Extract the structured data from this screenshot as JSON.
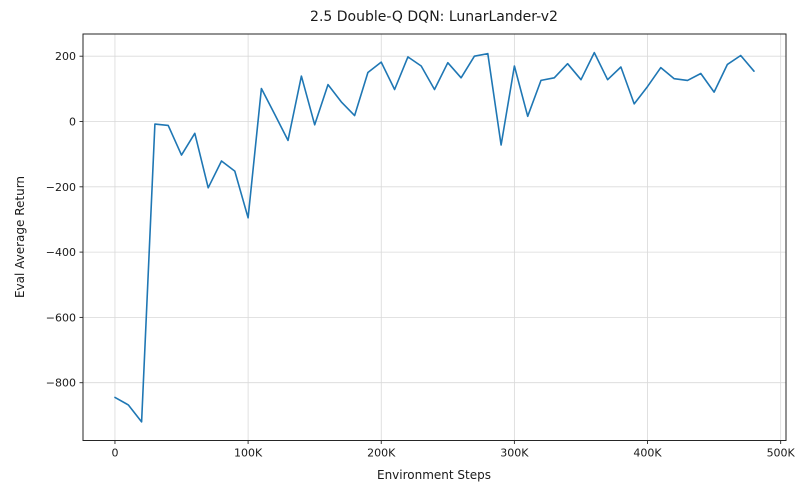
{
  "chart_data": {
    "type": "line",
    "title": "2.5 Double-Q DQN: LunarLander-v2",
    "xlabel": "Environment Steps",
    "ylabel": "Eval Average Return",
    "grid": true,
    "legend": "none",
    "line_color": "#1f77b4",
    "grid_color": "#d9d9d9",
    "spine_color": "#262626",
    "x": [
      0,
      10000,
      20000,
      30000,
      40000,
      50000,
      60000,
      70000,
      80000,
      90000,
      100000,
      110000,
      120000,
      130000,
      140000,
      150000,
      160000,
      170000,
      180000,
      190000,
      200000,
      210000,
      220000,
      230000,
      240000,
      250000,
      260000,
      270000,
      280000,
      290000,
      300000,
      310000,
      320000,
      330000,
      340000,
      350000,
      360000,
      370000,
      380000,
      390000,
      400000,
      410000,
      420000,
      430000,
      440000,
      450000,
      460000,
      470000,
      480000
    ],
    "values": [
      -845,
      -868,
      -920,
      -8,
      -12,
      -103,
      -36,
      -203,
      -121,
      -152,
      -295,
      101,
      22,
      -58,
      139,
      -10,
      113,
      60,
      18,
      150,
      182,
      98,
      198,
      170,
      98,
      180,
      134,
      200,
      208,
      -72,
      170,
      16,
      126,
      134,
      177,
      128,
      211,
      128,
      167,
      54,
      107,
      165,
      131,
      126,
      147,
      90,
      175,
      202,
      154
    ],
    "xlim": [
      -24000,
      504000
    ],
    "ylim": [
      -977,
      268
    ],
    "x_ticks": [
      {
        "v": 0,
        "label": "0"
      },
      {
        "v": 100000,
        "label": "100K"
      },
      {
        "v": 200000,
        "label": "200K"
      },
      {
        "v": 300000,
        "label": "300K"
      },
      {
        "v": 400000,
        "label": "400K"
      },
      {
        "v": 500000,
        "label": "500K"
      }
    ],
    "y_ticks": [
      {
        "v": 200,
        "label": "200"
      },
      {
        "v": 0,
        "label": "0"
      },
      {
        "v": -200,
        "label": "−200"
      },
      {
        "v": -400,
        "label": "−400"
      },
      {
        "v": -600,
        "label": "−600"
      },
      {
        "v": -800,
        "label": "−800"
      }
    ]
  }
}
